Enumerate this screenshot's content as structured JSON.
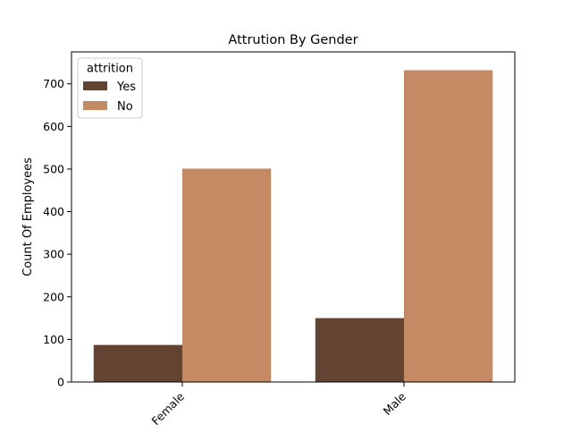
{
  "chart_data": {
    "type": "bar",
    "title": "Attrution By Gender",
    "xlabel": "",
    "ylabel": "Count Of Employees",
    "categories": [
      "Female",
      "Male"
    ],
    "series": [
      {
        "name": "Yes",
        "values": [
          87,
          150
        ],
        "color": "#634432"
      },
      {
        "name": "No",
        "values": [
          501,
          732
        ],
        "color": "#c48a63"
      }
    ],
    "ylim": [
      0,
      775
    ],
    "yticks": [
      0,
      100,
      200,
      300,
      400,
      500,
      600,
      700
    ],
    "legend": {
      "title": "attrition",
      "placement": "top-left"
    },
    "grid": false
  }
}
